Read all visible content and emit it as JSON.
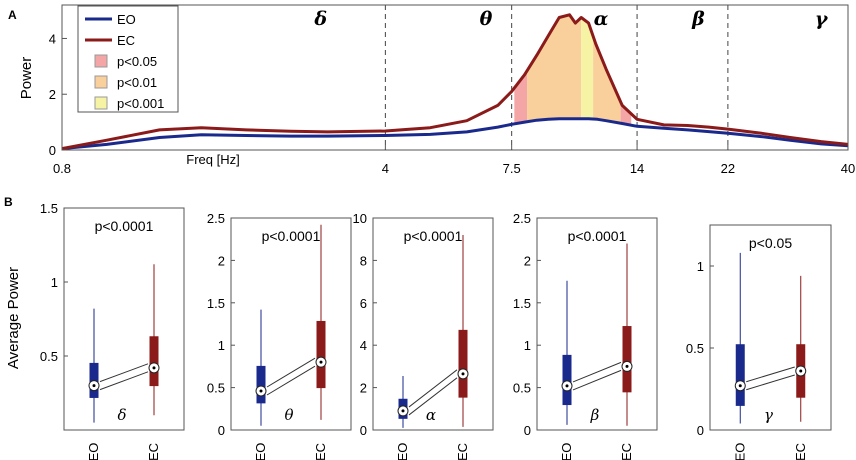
{
  "colors": {
    "eo": "#1a2a8c",
    "ec": "#8b1a1a",
    "p05": "#f4a6a6",
    "p01": "#f9cf9b",
    "p001": "#f6f3a4",
    "axis": "#555555",
    "dash": "#444444"
  },
  "panel_a": {
    "letter": "A",
    "legend": [
      {
        "label": "EO",
        "kind": "line",
        "color_key": "eo"
      },
      {
        "label": "EC",
        "kind": "line",
        "color_key": "ec"
      },
      {
        "label": "p<0.05",
        "kind": "patch",
        "color_key": "p05"
      },
      {
        "label": "p<0.01",
        "kind": "patch",
        "color_key": "p01"
      },
      {
        "label": "p<0.001",
        "kind": "patch",
        "color_key": "p001"
      }
    ],
    "band_symbols": [
      {
        "symbol": "δ",
        "freq": 2.9
      },
      {
        "symbol": "θ",
        "freq": 6.6
      },
      {
        "symbol": "α",
        "freq": 11.7
      },
      {
        "symbol": "β",
        "freq": 19.0
      },
      {
        "symbol": "γ",
        "freq": 35.0
      }
    ]
  },
  "panel_b": {
    "letter": "B",
    "ylabel": "Average Power"
  },
  "chart_data": [
    {
      "type": "line",
      "title": "",
      "xlabel": "Freq [Hz]",
      "ylabel": "Power",
      "xscale": "log",
      "xlim": [
        0.8,
        40
      ],
      "ylim": [
        0,
        5.2
      ],
      "xticks": [
        0.8,
        4,
        7.5,
        14,
        22,
        40
      ],
      "xtick_labels": [
        "0.8",
        "4",
        "7.5",
        "14",
        "22",
        "40"
      ],
      "yticks": [
        0,
        2,
        4
      ],
      "ytick_labels": [
        "0",
        "2",
        "4"
      ],
      "band_boundaries": [
        4,
        7.5,
        14,
        22,
        40
      ],
      "series": [
        {
          "name": "EO",
          "color_key": "eo",
          "x": [
            0.8,
            1.0,
            1.3,
            1.6,
            2.0,
            2.5,
            3.0,
            4.0,
            5.0,
            6.0,
            7.0,
            7.5,
            8.0,
            8.5,
            9.0,
            9.5,
            10.0,
            10.5,
            11.0,
            11.5,
            12.0,
            13.0,
            14.0,
            16.0,
            18.0,
            20.0,
            22.0,
            26.0,
            30.0,
            35.0,
            40.0
          ],
          "y": [
            0.05,
            0.2,
            0.45,
            0.55,
            0.52,
            0.5,
            0.5,
            0.52,
            0.56,
            0.65,
            0.82,
            0.92,
            1.0,
            1.07,
            1.1,
            1.12,
            1.12,
            1.12,
            1.12,
            1.1,
            1.05,
            0.95,
            0.85,
            0.78,
            0.72,
            0.66,
            0.6,
            0.48,
            0.35,
            0.22,
            0.15
          ]
        },
        {
          "name": "EC",
          "color_key": "ec",
          "x": [
            0.8,
            1.0,
            1.3,
            1.6,
            2.0,
            2.5,
            3.0,
            4.0,
            5.0,
            6.0,
            7.0,
            7.5,
            8.0,
            8.5,
            9.0,
            9.5,
            10.0,
            10.3,
            10.6,
            11.0,
            11.4,
            12.0,
            13.0,
            14.0,
            16.0,
            18.0,
            20.0,
            22.0,
            26.0,
            30.0,
            35.0,
            40.0
          ],
          "y": [
            0.05,
            0.35,
            0.72,
            0.8,
            0.72,
            0.67,
            0.65,
            0.68,
            0.8,
            1.05,
            1.6,
            2.1,
            2.7,
            3.4,
            4.1,
            4.75,
            4.85,
            4.55,
            4.75,
            4.55,
            3.8,
            2.9,
            1.6,
            1.1,
            0.9,
            0.88,
            0.82,
            0.75,
            0.6,
            0.45,
            0.3,
            0.2
          ]
        }
      ],
      "significance_regions": [
        {
          "level": "p<0.05",
          "from": 7.6,
          "to": 8.1,
          "color_key": "p05"
        },
        {
          "level": "p<0.01",
          "from": 8.1,
          "to": 10.6,
          "color_key": "p01"
        },
        {
          "level": "p<0.001",
          "from": 10.6,
          "to": 11.25,
          "color_key": "p001"
        },
        {
          "level": "p<0.01",
          "from": 11.25,
          "to": 12.9,
          "color_key": "p01"
        },
        {
          "level": "p<0.05",
          "from": 12.9,
          "to": 13.6,
          "color_key": "p05"
        }
      ]
    },
    {
      "type": "box",
      "band": "delta",
      "symbol": "δ",
      "pvalue": "p<0.0001",
      "categories": [
        "EO",
        "EC"
      ],
      "ylim": [
        0,
        1.5
      ],
      "yticks": [
        0.5,
        1,
        1.5
      ],
      "ytick_labels": [
        "0.5",
        "1",
        "1.5"
      ],
      "boxes": [
        {
          "name": "EO",
          "whisker_low": 0.05,
          "q1": 0.22,
          "median": 0.3,
          "q3": 0.45,
          "whisker_high": 0.82
        },
        {
          "name": "EC",
          "whisker_low": 0.1,
          "q1": 0.3,
          "median": 0.42,
          "q3": 0.63,
          "whisker_high": 1.12
        }
      ]
    },
    {
      "type": "box",
      "band": "theta",
      "symbol": "θ",
      "pvalue": "p<0.0001",
      "categories": [
        "EO",
        "EC"
      ],
      "ylim": [
        0,
        2.5
      ],
      "yticks": [
        0,
        0.5,
        1,
        1.5,
        2,
        2.5
      ],
      "ytick_labels": [
        "0",
        "0.5",
        "1",
        "1.5",
        "2",
        "2.5"
      ],
      "boxes": [
        {
          "name": "EO",
          "whisker_low": 0.05,
          "q1": 0.32,
          "median": 0.46,
          "q3": 0.75,
          "whisker_high": 1.42
        },
        {
          "name": "EC",
          "whisker_low": 0.12,
          "q1": 0.5,
          "median": 0.8,
          "q3": 1.28,
          "whisker_high": 2.42
        }
      ]
    },
    {
      "type": "box",
      "band": "alpha",
      "symbol": "α",
      "pvalue": "p<0.0001",
      "categories": [
        "EO",
        "EC"
      ],
      "ylim": [
        0,
        10
      ],
      "yticks": [
        0,
        2,
        4,
        6,
        8,
        10
      ],
      "ytick_labels": [
        "0",
        "2",
        "4",
        "6",
        "8",
        "10"
      ],
      "boxes": [
        {
          "name": "EO",
          "whisker_low": 0.1,
          "q1": 0.55,
          "median": 0.9,
          "q3": 1.45,
          "whisker_high": 2.55
        },
        {
          "name": "EC",
          "whisker_low": 0.15,
          "q1": 1.55,
          "median": 2.65,
          "q3": 4.7,
          "whisker_high": 9.2
        }
      ]
    },
    {
      "type": "box",
      "band": "beta",
      "symbol": "β",
      "pvalue": "p<0.0001",
      "categories": [
        "EO",
        "EC"
      ],
      "ylim": [
        0,
        2.5
      ],
      "yticks": [
        0,
        0.5,
        1,
        1.5,
        2,
        2.5
      ],
      "ytick_labels": [
        "0",
        "0.5",
        "1",
        "1.5",
        "2",
        "2.5"
      ],
      "boxes": [
        {
          "name": "EO",
          "whisker_low": 0.06,
          "q1": 0.3,
          "median": 0.52,
          "q3": 0.88,
          "whisker_high": 1.76
        },
        {
          "name": "EC",
          "whisker_low": 0.05,
          "q1": 0.45,
          "median": 0.75,
          "q3": 1.22,
          "whisker_high": 2.2
        }
      ]
    },
    {
      "type": "box",
      "band": "gamma",
      "symbol": "γ",
      "pvalue": "p<0.05",
      "categories": [
        "EO",
        "EC"
      ],
      "ylim": [
        0,
        1.25
      ],
      "yticks": [
        0,
        0.5,
        1
      ],
      "ytick_labels": [
        "0",
        "0.5",
        "1"
      ],
      "boxes": [
        {
          "name": "EO",
          "whisker_low": 0.04,
          "q1": 0.15,
          "median": 0.27,
          "q3": 0.52,
          "whisker_high": 1.08
        },
        {
          "name": "EC",
          "whisker_low": 0.05,
          "q1": 0.2,
          "median": 0.36,
          "q3": 0.52,
          "whisker_high": 0.94
        }
      ]
    }
  ]
}
